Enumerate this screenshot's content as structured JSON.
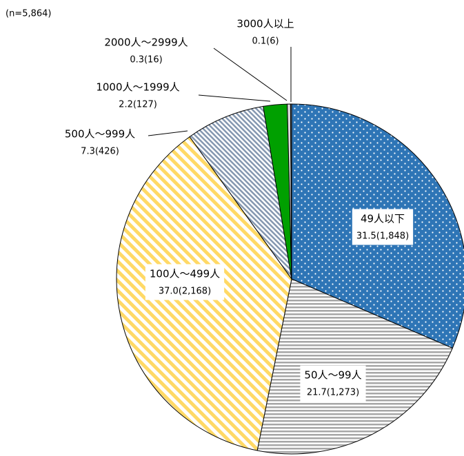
{
  "chart_data": {
    "type": "pie",
    "subtitle": "(n=5,864)",
    "categories": [
      "49人以下",
      "50人～99人",
      "100人～499人",
      "500人～999人",
      "1000人～1999人",
      "2000人～2999人",
      "3000人以上"
    ],
    "values": [
      31.5,
      21.7,
      37.0,
      7.3,
      2.2,
      0.3,
      0.1
    ],
    "value_labels": [
      "31.5(1,848)",
      "21.7(1,273)",
      "37.0(2,168)",
      "7.3(426)",
      "2.2(127)",
      "0.3(16)",
      "0.1(6)"
    ],
    "colors": [
      "#2e75b6",
      "#a6a6a6",
      "#ffd966",
      "#8497b0",
      "#00a000",
      "#d9d9d9",
      "#7f7f7f"
    ],
    "patterns": [
      "dots",
      "horizontal-stripes",
      "diagonal-stripes",
      "fine-diagonal-stripes",
      "solid",
      "solid",
      "solid"
    ]
  }
}
